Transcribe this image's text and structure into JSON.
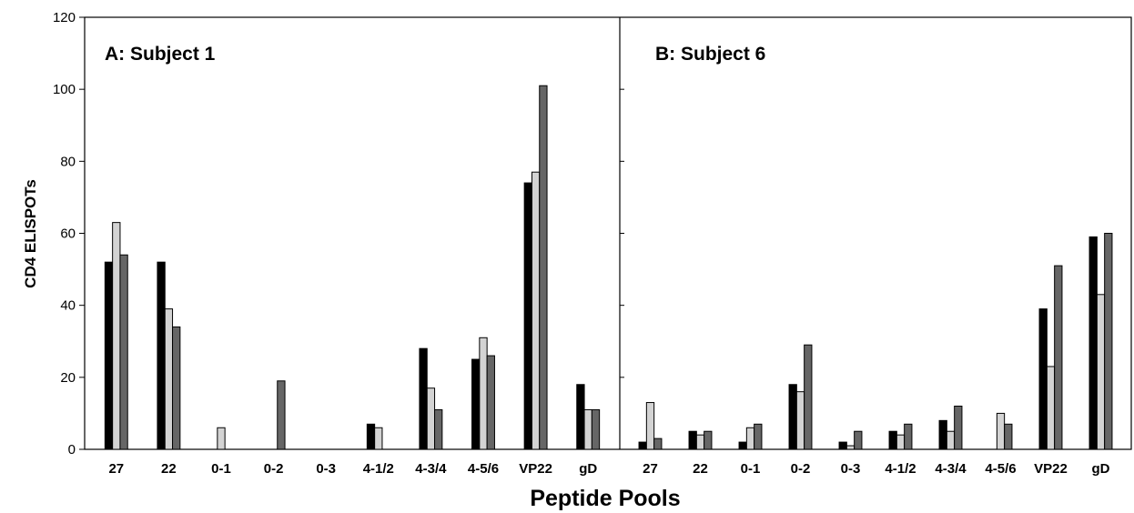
{
  "chart_data": {
    "type": "bar",
    "xlabel": "Peptide Pools",
    "ylabel": "CD4 ELISPOTs",
    "ylim": [
      0,
      120
    ],
    "yticks": [
      0,
      20,
      40,
      60,
      80,
      100,
      120
    ],
    "grid": false,
    "legend": "none",
    "series_colors": [
      "#000000",
      "#d3d3d3",
      "#666666"
    ],
    "panels": [
      {
        "title": "A: Subject 1",
        "categories": [
          "27",
          "22",
          "0-1",
          "0-2",
          "0-3",
          "4-1/2",
          "4-3/4",
          "4-5/6",
          "VP22",
          "gD"
        ],
        "series": [
          {
            "values": [
              52,
              52,
              0,
              0,
              0,
              7,
              28,
              25,
              74,
              18
            ]
          },
          {
            "values": [
              63,
              39,
              6,
              0,
              0,
              6,
              17,
              31,
              77,
              11
            ]
          },
          {
            "values": [
              54,
              34,
              0,
              19,
              0,
              0,
              11,
              26,
              101,
              11
            ]
          }
        ]
      },
      {
        "title": "B: Subject 6",
        "categories": [
          "27",
          "22",
          "0-1",
          "0-2",
          "0-3",
          "4-1/2",
          "4-3/4",
          "4-5/6",
          "VP22",
          "gD"
        ],
        "series": [
          {
            "values": [
              2,
              5,
              2,
              18,
              2,
              5,
              8,
              0,
              39,
              59
            ]
          },
          {
            "values": [
              13,
              4,
              6,
              16,
              1,
              4,
              5,
              10,
              23,
              43
            ]
          },
          {
            "values": [
              3,
              5,
              7,
              29,
              5,
              7,
              12,
              7,
              51,
              60
            ]
          }
        ]
      }
    ]
  }
}
